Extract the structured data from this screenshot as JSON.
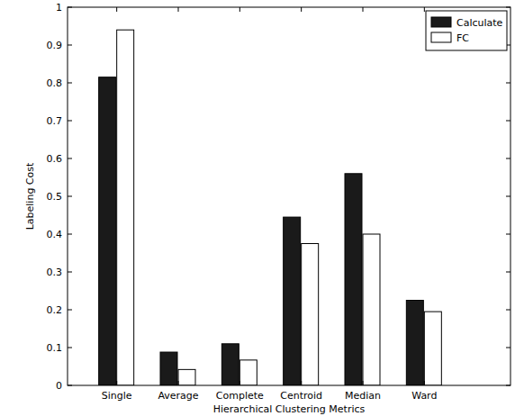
{
  "chart_data": {
    "type": "bar",
    "x_label": "Hierarchical Clustering Metrics",
    "y_label": "Labeling Cost",
    "categories": [
      "Single",
      "Average",
      "Complete",
      "Centroid",
      "Median",
      "Ward"
    ],
    "series": [
      {
        "name": "Calculate",
        "color": "#1a1a1a",
        "values": [
          0.815,
          0.088,
          0.11,
          0.445,
          0.56,
          0.225
        ]
      },
      {
        "name": "FC",
        "color": "#ffffff",
        "values": [
          0.94,
          0.042,
          0.067,
          0.375,
          0.4,
          0.195
        ]
      }
    ],
    "ylim": [
      0,
      1
    ],
    "yticks": [
      0,
      0.1,
      0.2,
      0.3,
      0.4,
      0.5,
      0.6,
      0.7,
      0.8,
      0.9,
      1
    ],
    "legend": "northeast",
    "grid": false
  }
}
